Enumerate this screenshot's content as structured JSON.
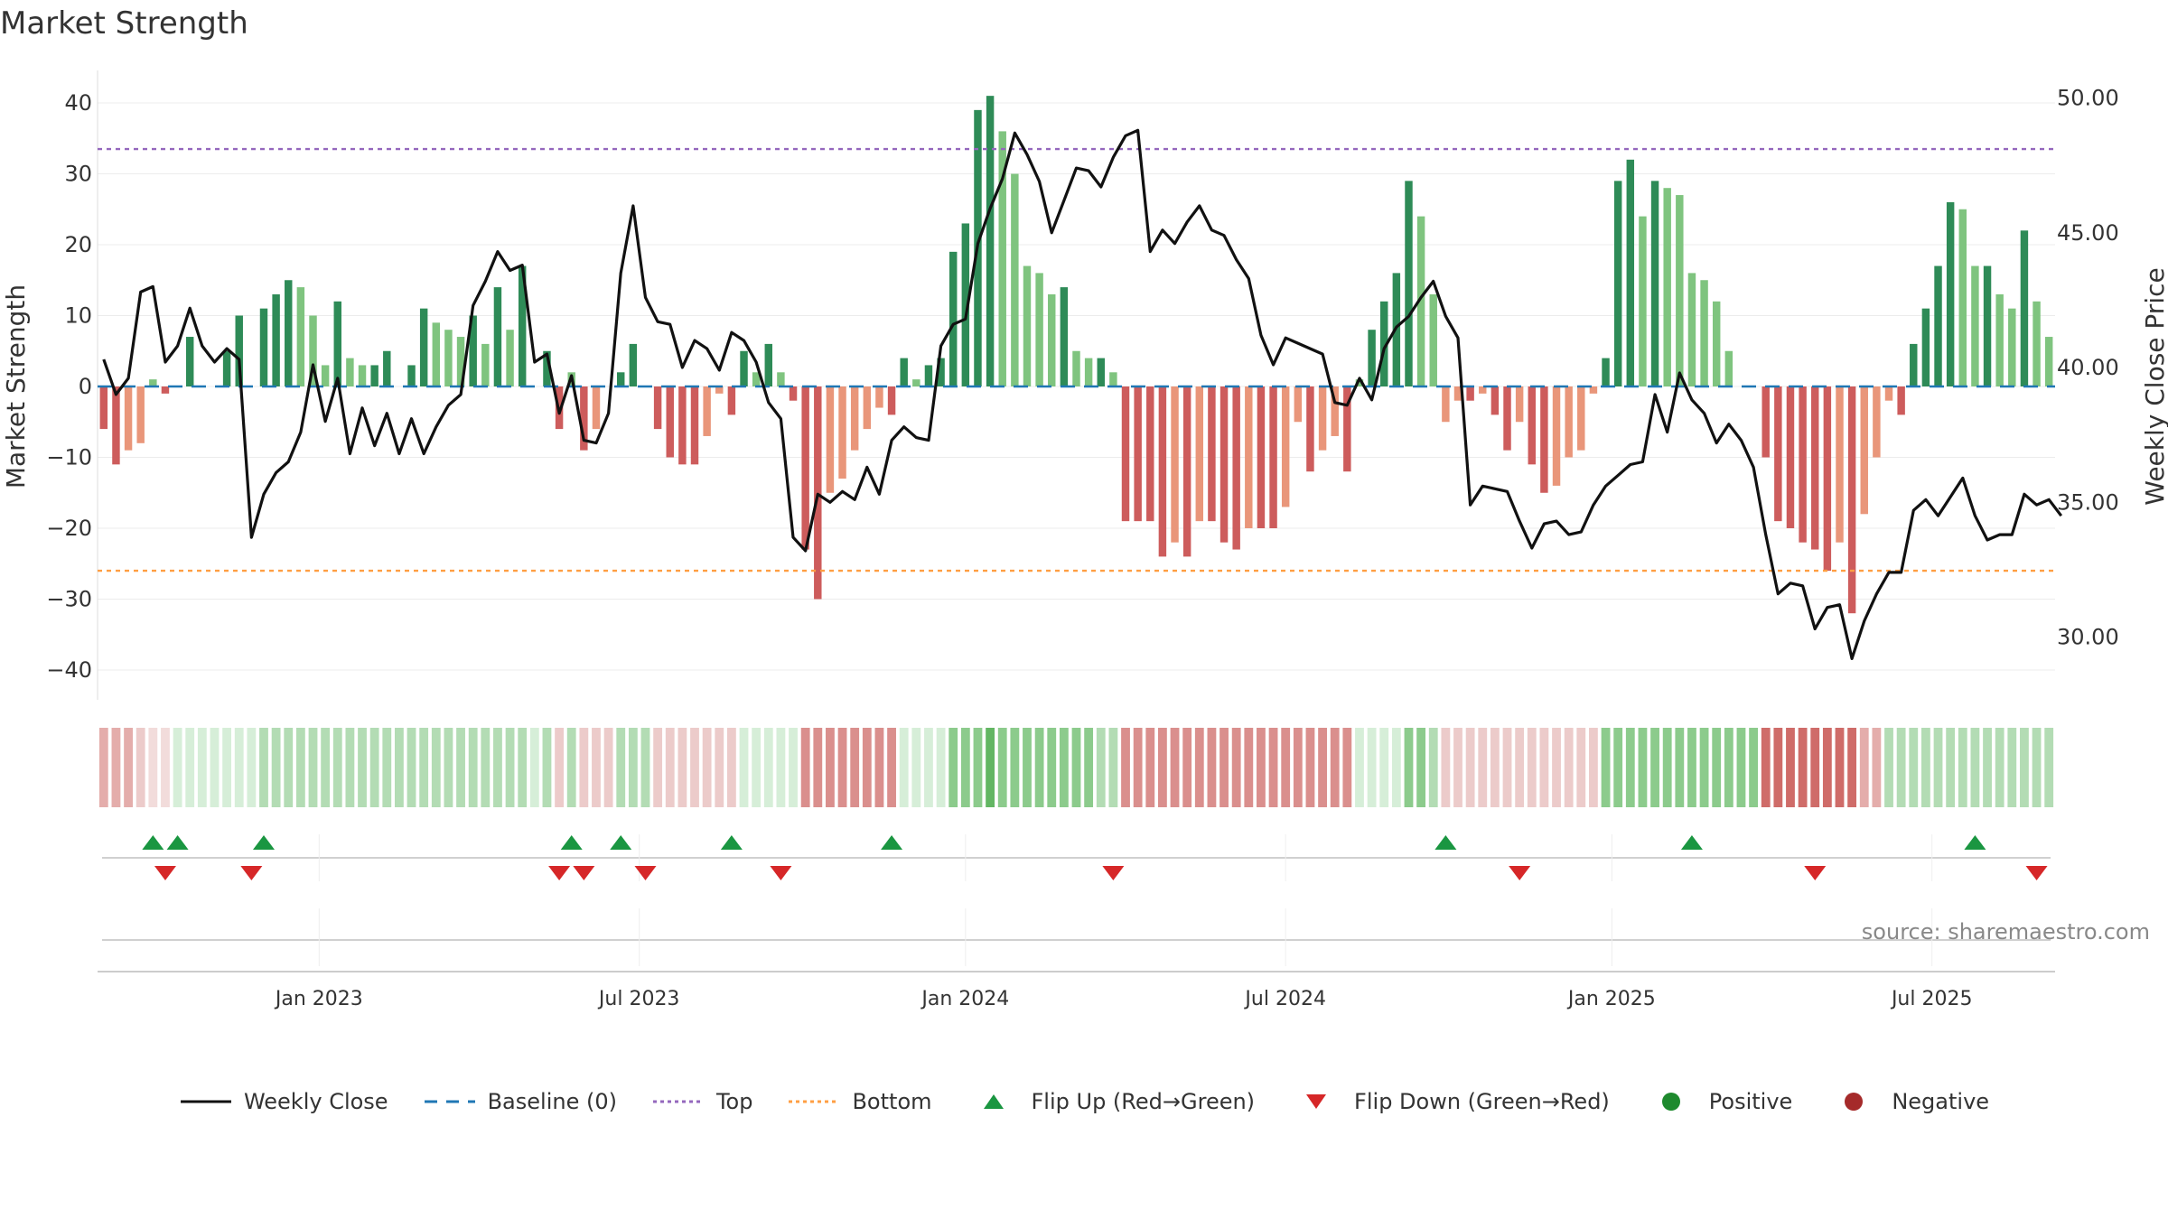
{
  "chart_data": {
    "type": "bar",
    "title": "Market Strength",
    "ylabel_left": "Market Strength",
    "ylabel_right": "Weekly Close Price",
    "left_axis": {
      "ylim": [
        -45,
        45
      ],
      "ticks": [
        40,
        30,
        20,
        10,
        0,
        -10,
        -20,
        -30,
        -40
      ],
      "tick_labels": [
        "40",
        "30",
        "20",
        "10",
        "0",
        "−10",
        "−20",
        "−30",
        "−40"
      ]
    },
    "right_axis": {
      "ylim": [
        27.5,
        50.5
      ],
      "ticks": [
        50,
        45,
        40,
        35,
        30
      ],
      "tick_labels": [
        "50.00",
        "45.00",
        "40.00",
        "35.00",
        "30.00"
      ]
    },
    "x_tick_labels": [
      "Jan 2023",
      "Jul 2023",
      "Jan 2024",
      "Jul 2024",
      "Jan 2025",
      "Jul 2025"
    ],
    "x_tick_positions": [
      17.5,
      43.5,
      70,
      96,
      122.5,
      148.5
    ],
    "top_line": 33.5,
    "bottom_line": -26,
    "strength": [
      -6,
      -11,
      -9,
      -8,
      1,
      -1,
      0,
      7,
      0,
      0,
      5,
      10,
      0,
      11,
      13,
      15,
      14,
      10,
      3,
      12,
      4,
      3,
      3,
      5,
      0,
      3,
      11,
      9,
      8,
      7,
      10,
      6,
      14,
      8,
      17,
      0,
      5,
      -6,
      2,
      -9,
      -6,
      0,
      2,
      6,
      0,
      -6,
      -10,
      -11,
      -11,
      -7,
      -1,
      -4,
      5,
      2,
      6,
      2,
      -2,
      -23,
      -30,
      -15,
      -13,
      -9,
      -6,
      -3,
      -4,
      4,
      1,
      3,
      4,
      19,
      23,
      39,
      41,
      36,
      30,
      17,
      16,
      13,
      14,
      5,
      4,
      4,
      2,
      -19,
      -19,
      -19,
      -24,
      -22,
      -24,
      -19,
      -19,
      -22,
      -23,
      -20,
      -20,
      -20,
      -17,
      -5,
      -12,
      -9,
      -7,
      -12,
      1,
      8,
      12,
      16,
      29,
      24,
      13,
      -5,
      -2,
      -2,
      -1,
      -4,
      -9,
      -5,
      -11,
      -15,
      -14,
      -10,
      -9,
      -1,
      4,
      29,
      32,
      24,
      29,
      28,
      27,
      16,
      15,
      12,
      5,
      0,
      0,
      -10,
      -19,
      -20,
      -22,
      -23,
      -26,
      -22,
      -32,
      -18,
      -10,
      -2,
      -4,
      6,
      11,
      17,
      26,
      25,
      17,
      17,
      13,
      11,
      22,
      12,
      7
    ],
    "weekly_close": [
      40.3,
      39.0,
      39.6,
      42.8,
      43.0,
      40.2,
      40.8,
      42.2,
      40.8,
      40.2,
      40.7,
      40.3,
      33.7,
      35.3,
      36.1,
      36.5,
      37.6,
      40.1,
      38.0,
      39.6,
      36.8,
      38.5,
      37.1,
      38.3,
      36.8,
      38.1,
      36.8,
      37.8,
      38.6,
      39.0,
      42.3,
      43.2,
      44.3,
      43.6,
      43.8,
      40.2,
      40.5,
      38.3,
      39.7,
      37.3,
      37.2,
      38.3,
      43.5,
      46.0,
      42.6,
      41.7,
      41.6,
      40.0,
      41.0,
      40.7,
      39.9,
      41.3,
      41.0,
      40.2,
      38.7,
      38.1,
      33.7,
      33.2,
      35.3,
      35.0,
      35.4,
      35.1,
      36.3,
      35.3,
      37.3,
      37.8,
      37.4,
      37.3,
      40.8,
      41.6,
      41.8,
      44.6,
      45.9,
      47.0,
      48.7,
      47.9,
      46.9,
      45.0,
      46.2,
      47.4,
      47.3,
      46.7,
      47.8,
      48.6,
      48.8,
      44.3,
      45.1,
      44.6,
      45.4,
      46.0,
      45.1,
      44.9,
      44.0,
      43.3,
      41.2,
      40.1,
      41.1,
      40.9,
      40.7,
      40.5,
      38.7,
      38.6,
      39.6,
      38.8,
      40.7,
      41.5,
      41.9,
      42.6,
      43.2,
      41.9,
      41.1,
      34.9,
      35.6,
      35.5,
      35.4,
      34.3,
      33.3,
      34.2,
      34.3,
      33.8,
      33.9,
      34.9,
      35.6,
      36.0,
      36.4,
      36.5,
      39.0,
      37.6,
      39.8,
      38.8,
      38.3,
      37.2,
      37.9,
      37.3,
      36.3,
      33.8,
      31.6,
      32.0,
      31.9,
      30.3,
      31.1,
      31.2,
      29.2,
      30.6,
      31.6,
      32.4,
      32.4,
      34.7,
      35.1,
      34.5,
      35.2,
      35.9,
      34.5,
      33.6,
      33.8,
      33.8,
      35.3,
      34.9,
      35.1,
      34.5
    ],
    "band_levels": [
      -3,
      -3,
      -3,
      -2,
      -1,
      -1,
      1,
      1,
      1,
      1,
      1,
      1,
      1,
      2,
      2,
      2,
      2,
      2,
      2,
      2,
      2,
      2,
      2,
      2,
      2,
      2,
      2,
      2,
      2,
      2,
      2,
      2,
      2,
      2,
      2,
      1,
      2,
      -2,
      2,
      -2,
      -2,
      -2,
      2,
      2,
      2,
      -2,
      -2,
      -2,
      -2,
      -2,
      -2,
      -2,
      1,
      1,
      1,
      1,
      1,
      -4,
      -4,
      -4,
      -4,
      -4,
      -4,
      -4,
      -4,
      1,
      1,
      1,
      1,
      3,
      3,
      3,
      4,
      3,
      3,
      3,
      3,
      3,
      3,
      3,
      3,
      2,
      2,
      -4,
      -4,
      -4,
      -4,
      -4,
      -4,
      -4,
      -4,
      -4,
      -4,
      -4,
      -4,
      -4,
      -4,
      -4,
      -4,
      -4,
      -4,
      -4,
      1,
      1,
      1,
      1,
      3,
      3,
      2,
      -2,
      -2,
      -2,
      -2,
      -2,
      -2,
      -2,
      -2,
      -2,
      -2,
      -2,
      -2,
      -2,
      3,
      3,
      3,
      3,
      3,
      3,
      3,
      3,
      3,
      3,
      3,
      3,
      3,
      -5,
      -5,
      -5,
      -5,
      -5,
      -5,
      -5,
      -5,
      -3,
      -3,
      2,
      2,
      2,
      2,
      2,
      2,
      2,
      2,
      2,
      2,
      2,
      2,
      2,
      2,
      -2
    ],
    "flip_up_weeks": [
      4,
      6,
      13,
      38,
      42,
      51,
      64,
      109,
      129,
      152
    ],
    "flip_down_weeks": [
      5,
      12,
      37,
      39,
      44,
      55,
      82,
      115,
      139,
      157
    ],
    "series": [
      {
        "name": "Weekly Close",
        "kind": "line",
        "color": "#111111"
      },
      {
        "name": "Baseline (0)",
        "kind": "line",
        "color": "#1f77b4"
      },
      {
        "name": "Top",
        "kind": "line",
        "color": "#9467bd"
      },
      {
        "name": "Bottom",
        "kind": "line",
        "color": "#ff9f43"
      }
    ],
    "source_note": "source: sharemaestro.com"
  },
  "legend": [
    {
      "label": "Weekly Close",
      "symbol": "line",
      "color": "#111111",
      "icon": "solid-line-icon"
    },
    {
      "label": "Baseline (0)",
      "symbol": "dash",
      "color": "#1f77b4",
      "icon": "dashed-line-icon"
    },
    {
      "label": "Top",
      "symbol": "dot",
      "color": "#9467bd",
      "icon": "dotted-line-icon"
    },
    {
      "label": "Bottom",
      "symbol": "dot",
      "color": "#ff9f43",
      "icon": "dotted-line-icon"
    },
    {
      "label": "Flip Up (Red→Green)",
      "symbol": "tri-up",
      "color": "#1a9641",
      "icon": "triangle-up-icon"
    },
    {
      "label": "Flip Down (Green→Red)",
      "symbol": "tri-down",
      "color": "#d62728",
      "icon": "triangle-down-icon"
    },
    {
      "label": "Positive",
      "symbol": "circle",
      "color": "#1e8a2e",
      "icon": "circle-icon"
    },
    {
      "label": "Negative",
      "symbol": "circle",
      "color": "#a52a2a",
      "icon": "circle-icon"
    }
  ],
  "colors": {
    "pos_dark": "#2e8b57",
    "pos_light": "#7fc47f",
    "neg_dark": "#cd5c5c",
    "neg_light": "#e9967a"
  }
}
